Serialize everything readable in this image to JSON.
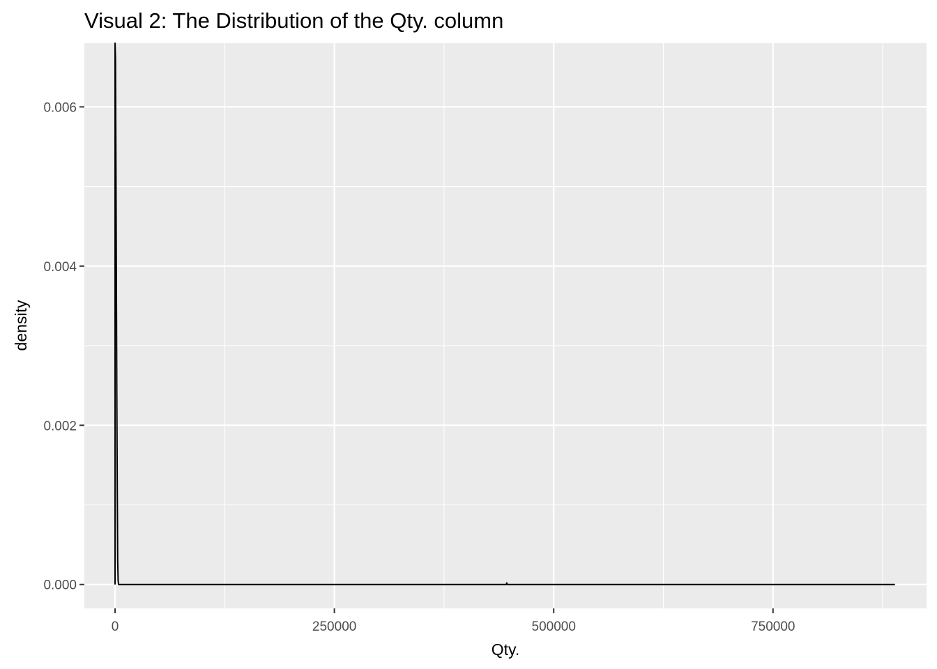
{
  "title": "Visual 2: The Distribution of the Qty. column",
  "chart_data": {
    "type": "line",
    "subtype": "density",
    "title": "Visual 2: The Distribution of the Qty. column",
    "xlabel": "Qty.",
    "ylabel": "density",
    "xlim": [
      -35000,
      925000
    ],
    "ylim": [
      -0.0003,
      0.0068
    ],
    "x_ticks": [
      0,
      250000,
      500000,
      750000
    ],
    "x_tick_labels": [
      "0",
      "250000",
      "500000",
      "750000"
    ],
    "y_ticks": [
      0.0,
      0.002,
      0.004,
      0.006
    ],
    "y_tick_labels": [
      "0.000",
      "0.002",
      "0.004",
      "0.006"
    ],
    "grid": true,
    "series": [
      {
        "x": [
          0,
          0,
          500,
          1000,
          1500,
          2000,
          2500,
          3000,
          3500,
          4000,
          4500,
          100000,
          300000,
          446000,
          446500,
          447000,
          600000,
          889000
        ],
        "y": [
          0,
          0.0068,
          0.0066,
          0.0053,
          0.0038,
          0.0024,
          0.0012,
          0.0003,
          5e-05,
          0.0,
          0.0,
          0.0,
          0.0,
          0.0,
          2e-05,
          0.0,
          0.0,
          0.0
        ],
        "color": "#000000"
      }
    ],
    "panel_background": "#ebebeb",
    "grid_color": "#ffffff"
  }
}
